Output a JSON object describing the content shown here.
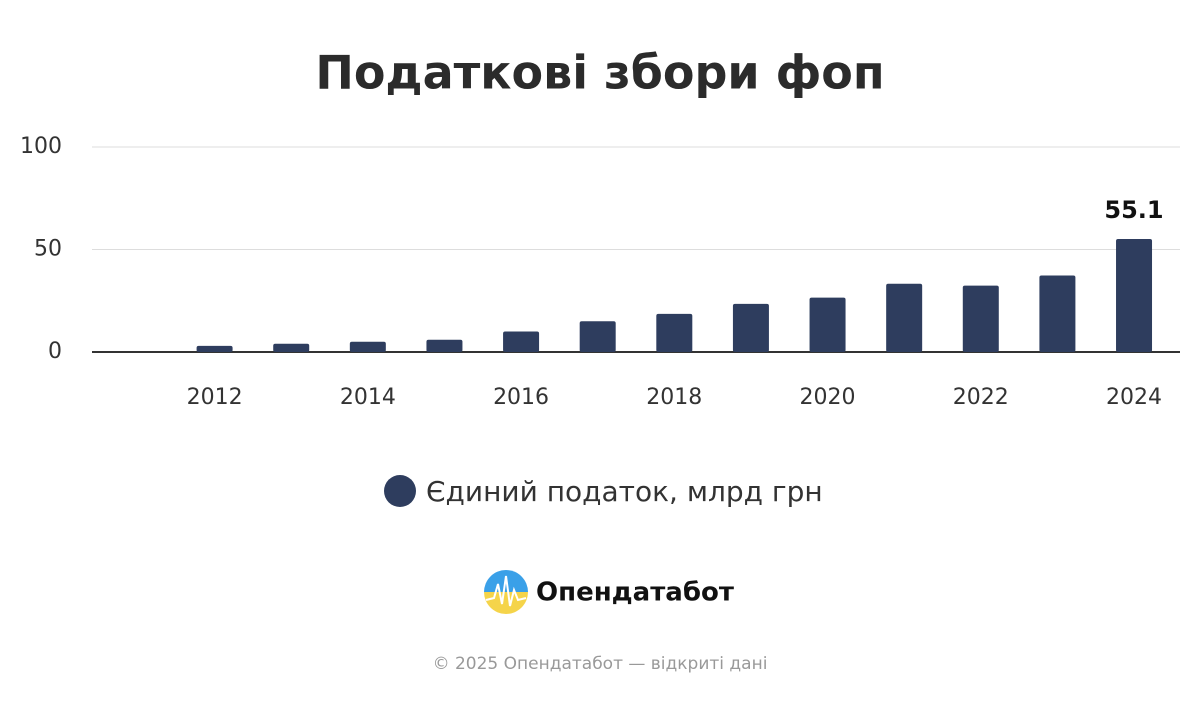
{
  "chart_data": {
    "type": "bar",
    "title": "Податкові збори фоп",
    "x": [
      2012,
      2013,
      2014,
      2015,
      2016,
      2017,
      2018,
      2019,
      2020,
      2021,
      2022,
      2023,
      2024
    ],
    "series": [
      {
        "name": "Єдиний податок, млрд грн",
        "color": "#2e3d5e",
        "values": [
          3,
          4,
          5,
          6,
          10,
          15,
          18.6,
          23.5,
          26.5,
          33.3,
          32.4,
          37.3,
          55.1
        ],
        "value_labels": [
          null,
          null,
          null,
          null,
          null,
          null,
          null,
          null,
          null,
          null,
          null,
          null,
          "55.1"
        ]
      }
    ],
    "xlim": [
      2010.4,
      2024.6
    ],
    "xticks": [
      2012,
      2014,
      2016,
      2018,
      2020,
      2022,
      2024
    ],
    "ylim": [
      0,
      100
    ],
    "yticks": [
      0,
      50,
      100
    ],
    "grid": true,
    "legend": "bottom"
  },
  "brand": "Опендатабот",
  "footer": "© 2025 Опендатабот — відкриті дані"
}
